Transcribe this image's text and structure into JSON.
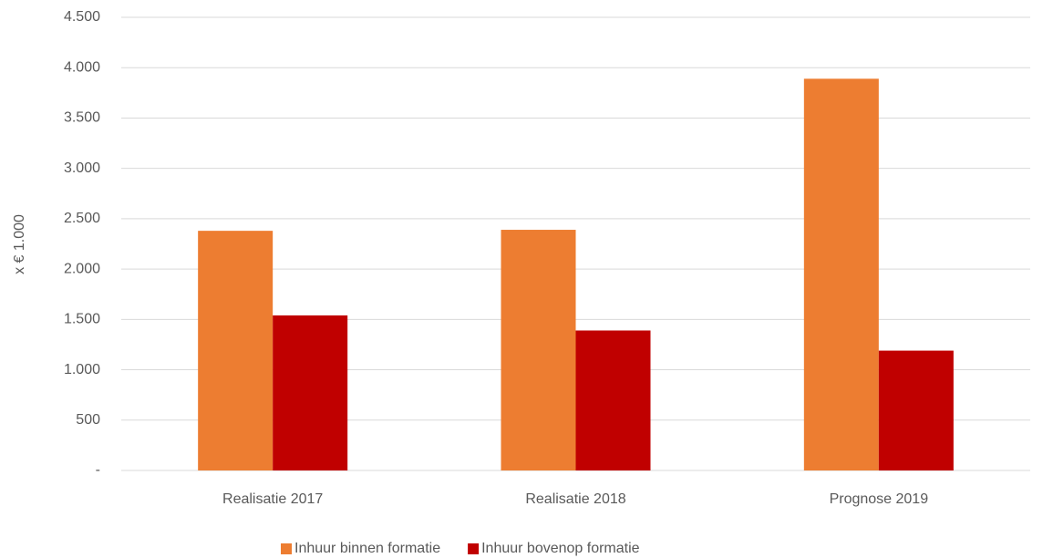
{
  "chart_data": {
    "type": "bar",
    "ylabel": "x € 1.000",
    "categories": [
      "Realisatie 2017",
      "Realisatie 2018",
      "Prognose 2019"
    ],
    "series": [
      {
        "name": "Inhuur binnen formatie",
        "color": "#ed7d31",
        "values": [
          2380,
          2390,
          3890
        ]
      },
      {
        "name": "Inhuur bovenop formatie",
        "color": "#c00000",
        "values": [
          1540,
          1390,
          1190
        ]
      }
    ],
    "ylim": [
      0,
      4500
    ],
    "yticks": [
      {
        "value": 0,
        "label": "-"
      },
      500,
      {
        "value": 1000,
        "label": "1.000"
      },
      {
        "value": 1500,
        "label": "1.500"
      },
      {
        "value": 2000,
        "label": "2.000"
      },
      {
        "value": 2500,
        "label": "2.500"
      },
      {
        "value": 3000,
        "label": "3.000"
      },
      {
        "value": 3500,
        "label": "3.500"
      },
      {
        "value": 4000,
        "label": "4.000"
      },
      {
        "value": 4500,
        "label": "4.500"
      }
    ],
    "grid": true,
    "legend": "bottom"
  }
}
